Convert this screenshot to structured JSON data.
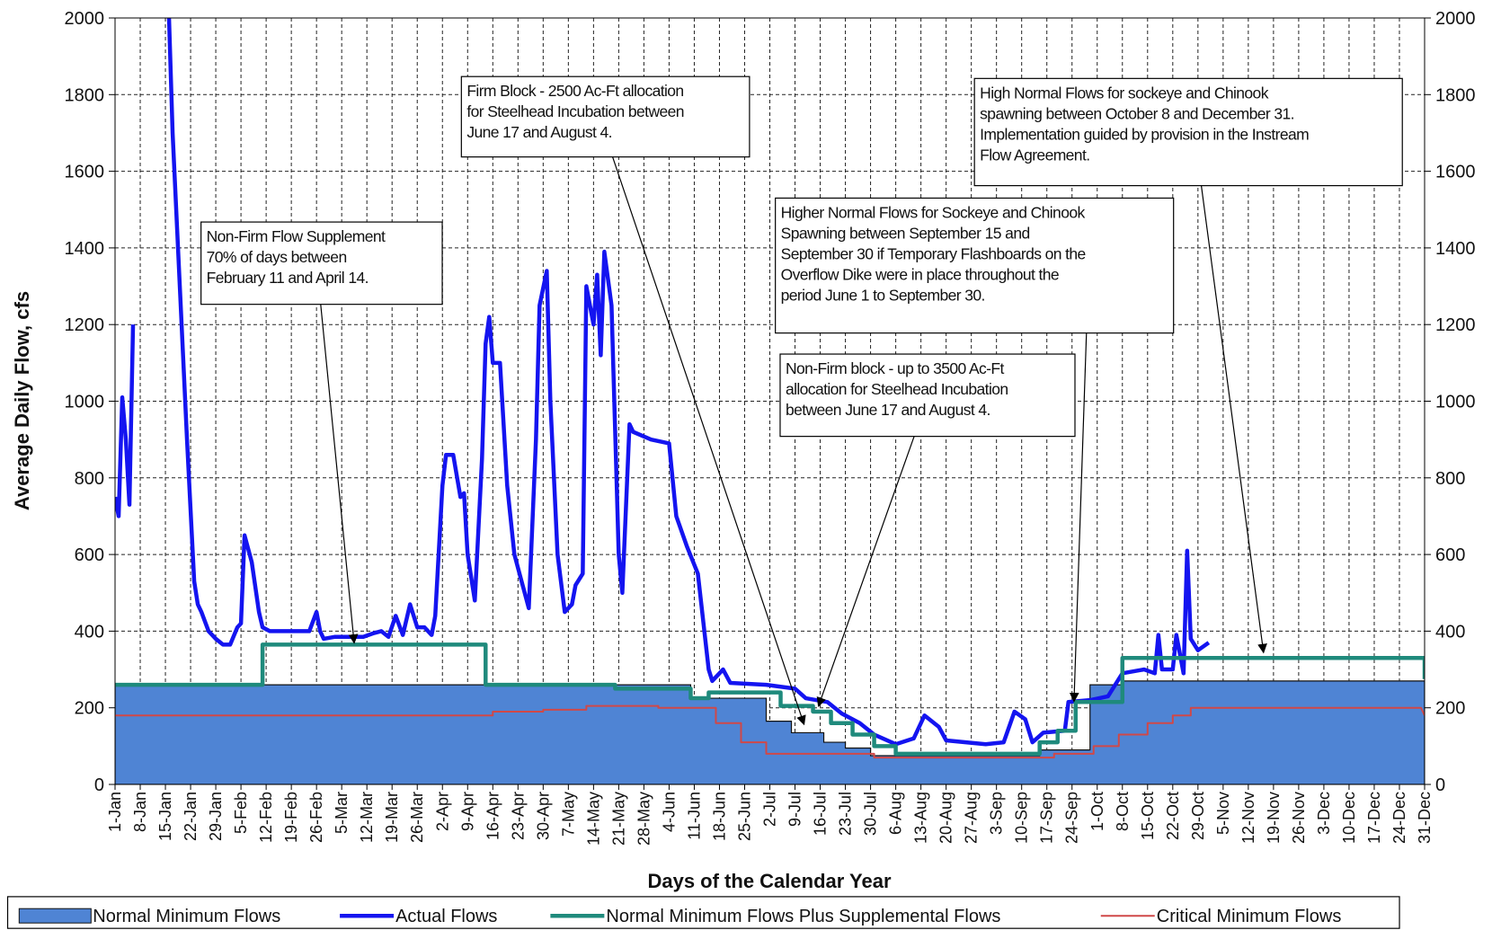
{
  "chart_data": {
    "type": "line",
    "x_label": "Days of the Calendar Year",
    "y_label": "Average Daily Flow, cfs",
    "xlim": [
      1,
      365
    ],
    "ylim": [
      0,
      2000
    ],
    "y2lim": [
      0,
      2000
    ],
    "grid": true,
    "legend": "bottom",
    "yticks": [
      0,
      200,
      400,
      600,
      800,
      1000,
      1200,
      1400,
      1600,
      1800,
      2000
    ],
    "y2ticks": [
      0,
      200,
      400,
      600,
      800,
      1000,
      1200,
      1400,
      1600,
      1800,
      2000
    ],
    "xticks": [
      {
        "value": 1,
        "label": "1-Jan"
      },
      {
        "value": 8,
        "label": "8-Jan"
      },
      {
        "value": 15,
        "label": "15-Jan"
      },
      {
        "value": 22,
        "label": "22-Jan"
      },
      {
        "value": 29,
        "label": "29-Jan"
      },
      {
        "value": 36,
        "label": "5-Feb"
      },
      {
        "value": 43,
        "label": "12-Feb"
      },
      {
        "value": 50,
        "label": "19-Feb"
      },
      {
        "value": 57,
        "label": "26-Feb"
      },
      {
        "value": 64,
        "label": "5-Mar"
      },
      {
        "value": 71,
        "label": "12-Mar"
      },
      {
        "value": 78,
        "label": "19-Mar"
      },
      {
        "value": 85,
        "label": "26-Mar"
      },
      {
        "value": 92,
        "label": "2-Apr"
      },
      {
        "value": 99,
        "label": "9-Apr"
      },
      {
        "value": 106,
        "label": "16-Apr"
      },
      {
        "value": 113,
        "label": "23-Apr"
      },
      {
        "value": 120,
        "label": "30-Apr"
      },
      {
        "value": 127,
        "label": "7-May"
      },
      {
        "value": 134,
        "label": "14-May"
      },
      {
        "value": 141,
        "label": "21-May"
      },
      {
        "value": 148,
        "label": "28-May"
      },
      {
        "value": 155,
        "label": "4-Jun"
      },
      {
        "value": 162,
        "label": "11-Jun"
      },
      {
        "value": 169,
        "label": "18-Jun"
      },
      {
        "value": 176,
        "label": "25-Jun"
      },
      {
        "value": 183,
        "label": "2-Jul"
      },
      {
        "value": 190,
        "label": "9-Jul"
      },
      {
        "value": 197,
        "label": "16-Jul"
      },
      {
        "value": 204,
        "label": "23-Jul"
      },
      {
        "value": 211,
        "label": "30-Jul"
      },
      {
        "value": 218,
        "label": "6-Aug"
      },
      {
        "value": 225,
        "label": "13-Aug"
      },
      {
        "value": 232,
        "label": "20-Aug"
      },
      {
        "value": 239,
        "label": "27-Aug"
      },
      {
        "value": 246,
        "label": "3-Sep"
      },
      {
        "value": 253,
        "label": "10-Sep"
      },
      {
        "value": 260,
        "label": "17-Sep"
      },
      {
        "value": 267,
        "label": "24-Sep"
      },
      {
        "value": 274,
        "label": "1-Oct"
      },
      {
        "value": 281,
        "label": "8-Oct"
      },
      {
        "value": 288,
        "label": "15-Oct"
      },
      {
        "value": 295,
        "label": "22-Oct"
      },
      {
        "value": 302,
        "label": "29-Oct"
      },
      {
        "value": 309,
        "label": "5-Nov"
      },
      {
        "value": 316,
        "label": "12-Nov"
      },
      {
        "value": 323,
        "label": "19-Nov"
      },
      {
        "value": 330,
        "label": "26-Nov"
      },
      {
        "value": 337,
        "label": "3-Dec"
      },
      {
        "value": 344,
        "label": "10-Dec"
      },
      {
        "value": 351,
        "label": "17-Dec"
      },
      {
        "value": 358,
        "label": "24-Dec"
      },
      {
        "value": 365,
        "label": "31-Dec"
      }
    ],
    "series": [
      {
        "name": "Normal Minimum Flows",
        "style": "area",
        "color": "#4f84d4",
        "x": [
          1,
          161,
          161,
          182,
          182,
          189,
          189,
          198,
          198,
          204,
          204,
          211,
          211,
          258,
          258,
          272,
          272,
          281,
          281,
          365
        ],
        "values": [
          260,
          260,
          225,
          225,
          165,
          165,
          135,
          135,
          110,
          110,
          95,
          95,
          75,
          75,
          90,
          90,
          260,
          260,
          270,
          270
        ]
      },
      {
        "name": "Actual Flows",
        "style": "line",
        "color": "#1414f0",
        "x": [
          1,
          2,
          3,
          4,
          5,
          6,
          11,
          16,
          17,
          19,
          21,
          23,
          24,
          25,
          27,
          29,
          31,
          33,
          35,
          36,
          37,
          39,
          41,
          42,
          44,
          50,
          55,
          57,
          58,
          59,
          62,
          66,
          70,
          73,
          75,
          77,
          79,
          81,
          83,
          85,
          87,
          89,
          90,
          92,
          93,
          95,
          97,
          98,
          99,
          101,
          103,
          104,
          105,
          106,
          108,
          110,
          112,
          114,
          116,
          118,
          119,
          121,
          122,
          124,
          126,
          128,
          129,
          131,
          132,
          134,
          135,
          136,
          137,
          139,
          141,
          142,
          144,
          145,
          150,
          155,
          157,
          160,
          163,
          166,
          167,
          170,
          172,
          182,
          190,
          193,
          199,
          203,
          208,
          212,
          218,
          223,
          226,
          230,
          232,
          243,
          248,
          251,
          254,
          256,
          259,
          265,
          266,
          272,
          277,
          281,
          287,
          290,
          291,
          292,
          295,
          296,
          298,
          299,
          300,
          302,
          305
        ],
        "values": [
          750,
          700,
          1010,
          900,
          730,
          1200,
          null,
          2000,
          1700,
          1300,
          900,
          530,
          470,
          450,
          400,
          380,
          365,
          365,
          410,
          420,
          650,
          580,
          450,
          410,
          400,
          400,
          400,
          450,
          400,
          380,
          385,
          385,
          385,
          395,
          400,
          385,
          440,
          390,
          470,
          410,
          410,
          390,
          440,
          780,
          860,
          860,
          750,
          760,
          600,
          480,
          850,
          1150,
          1220,
          1100,
          1100,
          780,
          600,
          530,
          460,
          900,
          1250,
          1340,
          1000,
          600,
          450,
          470,
          520,
          550,
          1300,
          1200,
          1330,
          1120,
          1390,
          1250,
          600,
          500,
          940,
          920,
          900,
          890,
          700,
          620,
          550,
          300,
          270,
          300,
          265,
          260,
          250,
          225,
          215,
          185,
          160,
          130,
          105,
          120,
          180,
          150,
          115,
          105,
          110,
          190,
          170,
          110,
          135,
          140,
          215,
          220,
          230,
          290,
          300,
          290,
          390,
          300,
          300,
          390,
          290,
          610,
          380,
          350,
          370
        ]
      },
      {
        "name": "Normal Minimum Flows Plus Supplemental Flows",
        "style": "line",
        "color": "#1f8a7c",
        "x": [
          1,
          42,
          42,
          104,
          104,
          140,
          140,
          161,
          161,
          166,
          166,
          186,
          186,
          195,
          195,
          200,
          200,
          206,
          206,
          212,
          212,
          218,
          218,
          258,
          258,
          263,
          263,
          268,
          268,
          281,
          281,
          365,
          365
        ],
        "values": [
          260,
          260,
          365,
          365,
          260,
          260,
          250,
          250,
          225,
          225,
          240,
          240,
          205,
          205,
          190,
          190,
          160,
          160,
          130,
          130,
          100,
          100,
          80,
          80,
          110,
          110,
          140,
          140,
          215,
          215,
          330,
          330,
          275
        ]
      },
      {
        "name": "Critical Minimum Flows",
        "style": "line",
        "color": "#d04848",
        "x": [
          1,
          106,
          106,
          120,
          120,
          132,
          132,
          152,
          152,
          168,
          168,
          175,
          175,
          182,
          182,
          212,
          212,
          262,
          262,
          273,
          273,
          280,
          280,
          288,
          288,
          295,
          295,
          300,
          300,
          364,
          365
        ],
        "values": [
          180,
          180,
          190,
          190,
          195,
          195,
          205,
          205,
          200,
          200,
          160,
          160,
          110,
          110,
          80,
          80,
          70,
          70,
          80,
          80,
          100,
          100,
          130,
          130,
          160,
          160,
          180,
          180,
          200,
          200,
          180
        ]
      }
    ],
    "annotations": [
      {
        "text": [
          "Non-Firm Flow Supplement",
          "70% of days between",
          "February 11 and April 14."
        ]
      },
      {
        "text": [
          "Firm Block - 2500 Ac-Ft allocation",
          "for Steelhead Incubation between",
          "June 17 and August 4."
        ]
      },
      {
        "text": [
          "High Normal Flows for sockeye and Chinook",
          "spawning between October 8 and December 31.",
          "Implementation guided by provision in the Instream",
          "Flow Agreement."
        ]
      },
      {
        "text": [
          "Higher Normal Flows for Sockeye and Chinook",
          "Spawning between September 15 and",
          "September 30 if Temporary Flashboards on the",
          "Overflow Dike were in place throughout the",
          "period June 1 to September 30."
        ]
      },
      {
        "text": [
          "Non-Firm block - up to 3500 Ac-Ft",
          "allocation for Steelhead Incubation",
          "between June 17 and August 4."
        ]
      }
    ]
  }
}
